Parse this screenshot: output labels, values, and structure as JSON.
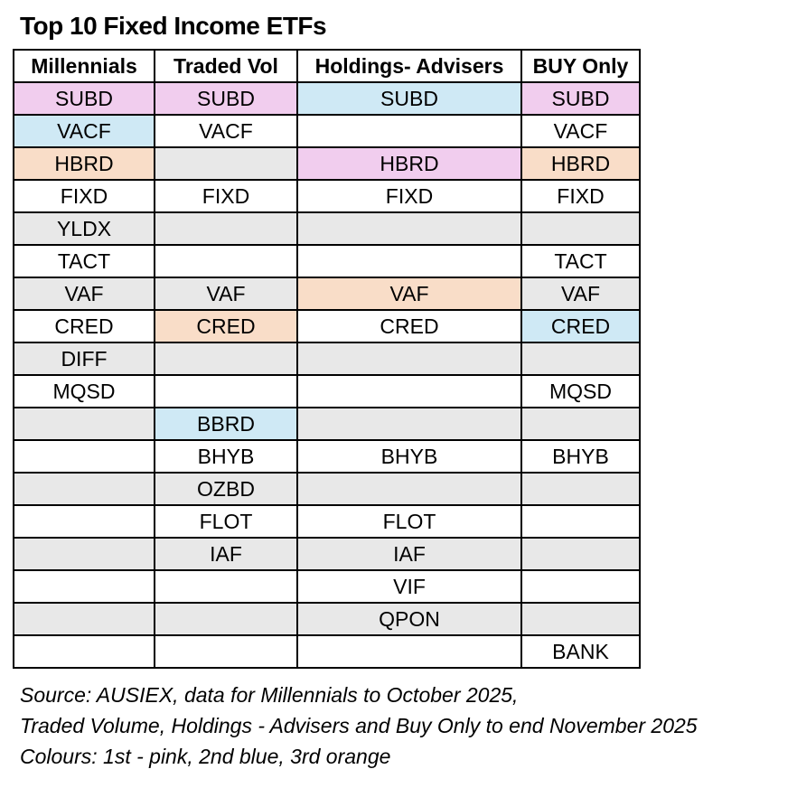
{
  "chart_data": {
    "type": "table",
    "title": "Top 10 Fixed Income ETFs",
    "columns": [
      "Millennials",
      "Traded Vol",
      "Holdings- Advisers",
      "BUY Only"
    ],
    "color_key": {
      "1st": "pink",
      "2nd": "blue",
      "3rd": "orange"
    },
    "rows": [
      [
        {
          "t": "SUBD",
          "c": "pink"
        },
        {
          "t": "SUBD",
          "c": "pink"
        },
        {
          "t": "SUBD",
          "c": "blue"
        },
        {
          "t": "SUBD",
          "c": "pink"
        }
      ],
      [
        {
          "t": "VACF",
          "c": "blue"
        },
        {
          "t": "VACF",
          "c": "white"
        },
        {
          "t": "",
          "c": "white"
        },
        {
          "t": "VACF",
          "c": "white"
        }
      ],
      [
        {
          "t": "HBRD",
          "c": "orange"
        },
        {
          "t": "",
          "c": "gray"
        },
        {
          "t": "HBRD",
          "c": "pink"
        },
        {
          "t": "HBRD",
          "c": "orange"
        }
      ],
      [
        {
          "t": "FIXD",
          "c": "white"
        },
        {
          "t": "FIXD",
          "c": "white"
        },
        {
          "t": "FIXD",
          "c": "white"
        },
        {
          "t": "FIXD",
          "c": "white"
        }
      ],
      [
        {
          "t": "YLDX",
          "c": "gray"
        },
        {
          "t": "",
          "c": "gray"
        },
        {
          "t": "",
          "c": "gray"
        },
        {
          "t": "",
          "c": "gray"
        }
      ],
      [
        {
          "t": "TACT",
          "c": "white"
        },
        {
          "t": "",
          "c": "white"
        },
        {
          "t": "",
          "c": "white"
        },
        {
          "t": "TACT",
          "c": "white"
        }
      ],
      [
        {
          "t": "VAF",
          "c": "gray"
        },
        {
          "t": "VAF",
          "c": "gray"
        },
        {
          "t": "VAF",
          "c": "orange"
        },
        {
          "t": "VAF",
          "c": "gray"
        }
      ],
      [
        {
          "t": "CRED",
          "c": "white"
        },
        {
          "t": "CRED",
          "c": "orange"
        },
        {
          "t": "CRED",
          "c": "white"
        },
        {
          "t": "CRED",
          "c": "blue"
        }
      ],
      [
        {
          "t": "DIFF",
          "c": "gray"
        },
        {
          "t": "",
          "c": "gray"
        },
        {
          "t": "",
          "c": "gray"
        },
        {
          "t": "",
          "c": "gray"
        }
      ],
      [
        {
          "t": "MQSD",
          "c": "white"
        },
        {
          "t": "",
          "c": "white"
        },
        {
          "t": "",
          "c": "white"
        },
        {
          "t": "MQSD",
          "c": "white"
        }
      ],
      [
        {
          "t": "",
          "c": "gray"
        },
        {
          "t": "BBRD",
          "c": "blue"
        },
        {
          "t": "",
          "c": "gray"
        },
        {
          "t": "",
          "c": "gray"
        }
      ],
      [
        {
          "t": "",
          "c": "white"
        },
        {
          "t": "BHYB",
          "c": "white"
        },
        {
          "t": "BHYB",
          "c": "white"
        },
        {
          "t": "BHYB",
          "c": "white"
        }
      ],
      [
        {
          "t": "",
          "c": "gray"
        },
        {
          "t": "OZBD",
          "c": "gray"
        },
        {
          "t": "",
          "c": "gray"
        },
        {
          "t": "",
          "c": "gray"
        }
      ],
      [
        {
          "t": "",
          "c": "white"
        },
        {
          "t": "FLOT",
          "c": "white"
        },
        {
          "t": "FLOT",
          "c": "white"
        },
        {
          "t": "",
          "c": "white"
        }
      ],
      [
        {
          "t": "",
          "c": "gray"
        },
        {
          "t": "IAF",
          "c": "gray"
        },
        {
          "t": "IAF",
          "c": "gray"
        },
        {
          "t": "",
          "c": "gray"
        }
      ],
      [
        {
          "t": "",
          "c": "white"
        },
        {
          "t": "",
          "c": "white"
        },
        {
          "t": "VIF",
          "c": "white"
        },
        {
          "t": "",
          "c": "white"
        }
      ],
      [
        {
          "t": "",
          "c": "gray"
        },
        {
          "t": "",
          "c": "gray"
        },
        {
          "t": "QPON",
          "c": "gray"
        },
        {
          "t": "",
          "c": "gray"
        }
      ],
      [
        {
          "t": "",
          "c": "white"
        },
        {
          "t": "",
          "c": "white"
        },
        {
          "t": "",
          "c": "white"
        },
        {
          "t": "BANK",
          "c": "white"
        }
      ]
    ]
  },
  "colors": {
    "pink": "#F1CDEE",
    "blue": "#CFE9F5",
    "orange": "#F9DDC8",
    "gray": "#E8E8E8",
    "white": "#FFFFFF",
    "border": "#000000"
  },
  "footer": {
    "line1": "Source: AUSIEX, data for Millennials to October 2025,",
    "line2": "Traded Volume, Holdings - Advisers and Buy Only to end November 2025",
    "line3": "Colours: 1st - pink, 2nd blue, 3rd orange"
  }
}
